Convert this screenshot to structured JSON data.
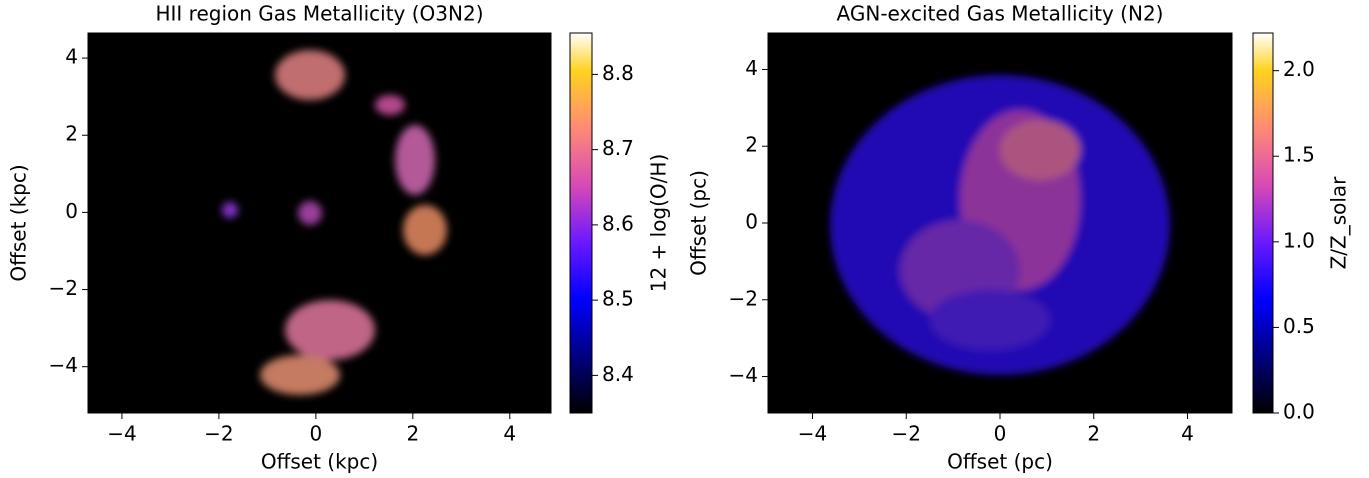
{
  "chart_data": [
    {
      "type": "heatmap",
      "title": "HII region Gas Metallicity (O3N2)",
      "x_label": "Offset (kpc)",
      "y_label": "Offset (kpc)",
      "xlim": [
        -4.7,
        4.85
      ],
      "ylim": [
        -5.2,
        4.65
      ],
      "xticks": [
        {
          "value": -4,
          "label": "−4"
        },
        {
          "value": -2,
          "label": "−2"
        },
        0,
        2,
        4
      ],
      "yticks": [
        {
          "value": -4,
          "label": "−4"
        },
        {
          "value": -2,
          "label": "−2"
        },
        0,
        2,
        4
      ],
      "colormap": "gnuplot2",
      "colorbar_label": "12 + log(O/H)",
      "clim": [
        8.35,
        8.855
      ],
      "cticks": [
        8.4,
        8.5,
        8.6,
        8.7,
        8.8
      ]
    },
    {
      "type": "heatmap",
      "title": "AGN-excited Gas Metallicity (N2)",
      "x_label": "Offset (pc)",
      "y_label": "Offset (pc)",
      "xlim": [
        -4.95,
        4.95
      ],
      "ylim": [
        -4.95,
        4.95
      ],
      "xticks": [
        {
          "value": -4,
          "label": "−4"
        },
        {
          "value": -2,
          "label": "−2"
        },
        0,
        2,
        4
      ],
      "yticks": [
        {
          "value": -4,
          "label": "−4"
        },
        {
          "value": -2,
          "label": "−2"
        },
        0,
        2,
        4
      ],
      "colormap": "gnuplot2",
      "colorbar_label": "Z/Z_solar",
      "clim": [
        0,
        2.22
      ],
      "cticks": [
        {
          "value": 0,
          "label": "0.0"
        },
        0.5,
        {
          "value": 1,
          "label": "1.0"
        },
        1.5,
        {
          "value": 2,
          "label": "2.0"
        }
      ]
    }
  ]
}
